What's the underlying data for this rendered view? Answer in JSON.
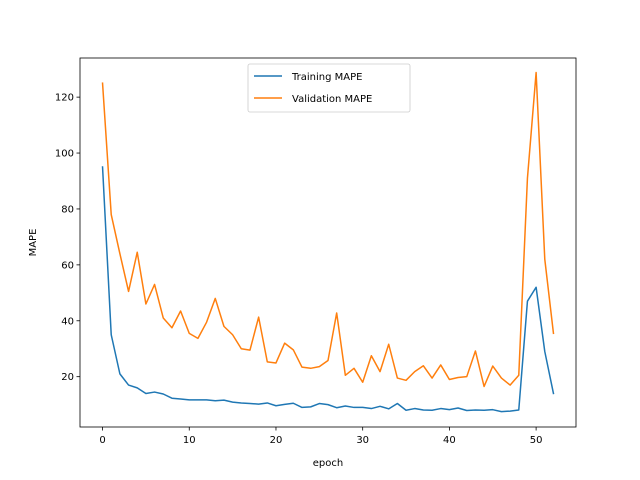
{
  "chart_data": {
    "type": "line",
    "title": "",
    "xlabel": "epoch",
    "ylabel": "MAPE",
    "xlim": [
      -2.6,
      54.6
    ],
    "ylim": [
      2,
      134
    ],
    "xticks": [
      0,
      10,
      20,
      30,
      40,
      50
    ],
    "yticks": [
      20,
      40,
      60,
      80,
      100,
      120
    ],
    "grid": false,
    "legend_position": "upper-center",
    "x": [
      0,
      1,
      2,
      3,
      4,
      5,
      6,
      7,
      8,
      9,
      10,
      11,
      12,
      13,
      14,
      15,
      16,
      17,
      18,
      19,
      20,
      21,
      22,
      23,
      24,
      25,
      26,
      27,
      28,
      29,
      30,
      31,
      32,
      33,
      34,
      35,
      36,
      37,
      38,
      39,
      40,
      41,
      42,
      43,
      44,
      45,
      46,
      47,
      48,
      49,
      50,
      51,
      52
    ],
    "series": [
      {
        "name": "Training MAPE",
        "color": "#1f77b4",
        "values": [
          95.0,
          35.0,
          21.0,
          17.0,
          16.0,
          14.0,
          14.5,
          13.8,
          12.3,
          12.0,
          11.7,
          11.7,
          11.7,
          11.4,
          11.6,
          10.9,
          10.6,
          10.4,
          10.2,
          10.6,
          9.6,
          10.1,
          10.5,
          9.0,
          9.2,
          10.4,
          10.0,
          8.9,
          9.5,
          9.0,
          9.0,
          8.6,
          9.4,
          8.5,
          10.4,
          8.0,
          8.6,
          8.1,
          8.0,
          8.6,
          8.2,
          8.8,
          7.9,
          8.1,
          8.0,
          8.2,
          7.5,
          7.7,
          8.1,
          47.0,
          52.0,
          29.0,
          14.0
        ]
      },
      {
        "name": "Validation MAPE",
        "color": "#ff7f0e",
        "values": [
          125.0,
          78.0,
          64.0,
          50.5,
          64.5,
          46.0,
          53.0,
          41.0,
          37.5,
          43.5,
          35.5,
          33.7,
          39.5,
          48.0,
          38.0,
          35.0,
          30.0,
          29.5,
          41.3,
          25.3,
          24.9,
          32.0,
          29.6,
          23.4,
          23.0,
          23.6,
          25.8,
          42.8,
          20.5,
          23.0,
          18.0,
          27.5,
          21.8,
          31.6,
          19.5,
          18.7,
          21.8,
          23.9,
          19.5,
          24.2,
          19.0,
          19.7,
          20.0,
          29.2,
          16.5,
          23.8,
          19.5,
          17.0,
          20.5,
          91.0,
          128.8,
          62.0,
          35.5
        ]
      }
    ]
  }
}
